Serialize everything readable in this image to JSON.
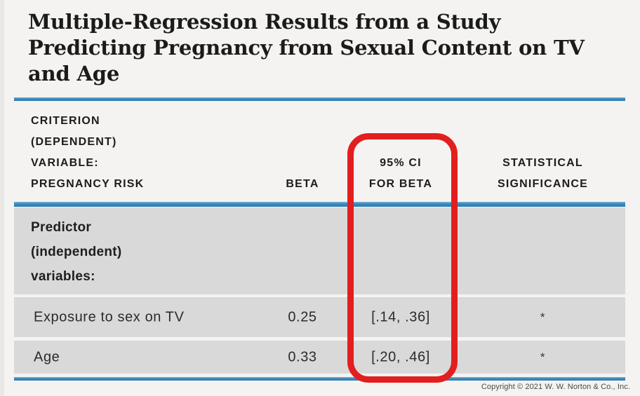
{
  "title": "Multiple-Regression Results from a Study Predicting Pregnancy from Sexual Content on TV and Age",
  "table": {
    "header": {
      "criterion_line1": "CRITERION",
      "criterion_line2": "(DEPENDENT)",
      "criterion_line3": "VARIABLE:",
      "criterion_line4": "PREGNANCY RISK",
      "beta": "BETA",
      "ci_line1": "95% CI",
      "ci_line2": "FOR BETA",
      "sig_line1": "STATISTICAL",
      "sig_line2": "SIGNIFICANCE"
    },
    "section_row": {
      "line1": "Predictor",
      "line2": "(independent)",
      "line3": "variables:"
    },
    "rows": [
      {
        "label": "Exposure to sex on TV",
        "beta": "0.25",
        "ci": "[.14, .36]",
        "sig": "*"
      },
      {
        "label": "Age",
        "beta": "0.33",
        "ci": "[.20, .46]",
        "sig": "*"
      }
    ]
  },
  "annotation": {
    "shape": "red-rounded-rectangle",
    "highlights": "95% CI FOR BETA column"
  },
  "footer": {
    "copyright": "Copyright © 2021 W. W. Norton & Co., Inc."
  },
  "colors": {
    "accent_blue": "#3b86ba",
    "highlight_red": "#e31e1e",
    "row_gray": "#d9d9d9",
    "page_background": "#f4f3f1",
    "text_dark": "#1b1b1b"
  }
}
